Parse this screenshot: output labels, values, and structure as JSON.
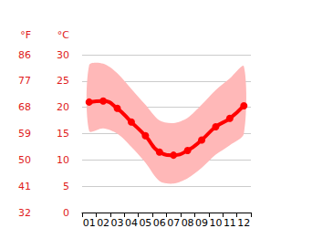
{
  "chart_data": {
    "type": "line",
    "categories": [
      "01",
      "02",
      "03",
      "04",
      "05",
      "06",
      "07",
      "08",
      "09",
      "10",
      "11",
      "12"
    ],
    "values": [
      21.0,
      21.2,
      19.8,
      17.2,
      14.6,
      11.5,
      10.9,
      11.8,
      13.8,
      16.3,
      17.9,
      20.3
    ],
    "high": [
      28.0,
      28.3,
      26.5,
      23.5,
      20.5,
      17.5,
      17.0,
      18.0,
      20.5,
      23.3,
      25.5,
      27.8
    ],
    "low": [
      15.5,
      16.0,
      15.0,
      12.5,
      9.5,
      6.0,
      5.5,
      6.5,
      8.5,
      11.0,
      12.8,
      15.0
    ],
    "color": "#ff0000",
    "marker": "circle",
    "y_label": "°C",
    "ylim": [
      0,
      30
    ],
    "yticks": [
      0,
      5,
      10,
      15,
      20,
      25,
      30
    ],
    "y2_label": "°F",
    "y2lim": [
      32,
      86
    ],
    "y2ticks": [
      32,
      41,
      50,
      59,
      68,
      77,
      86
    ],
    "grid": true
  }
}
